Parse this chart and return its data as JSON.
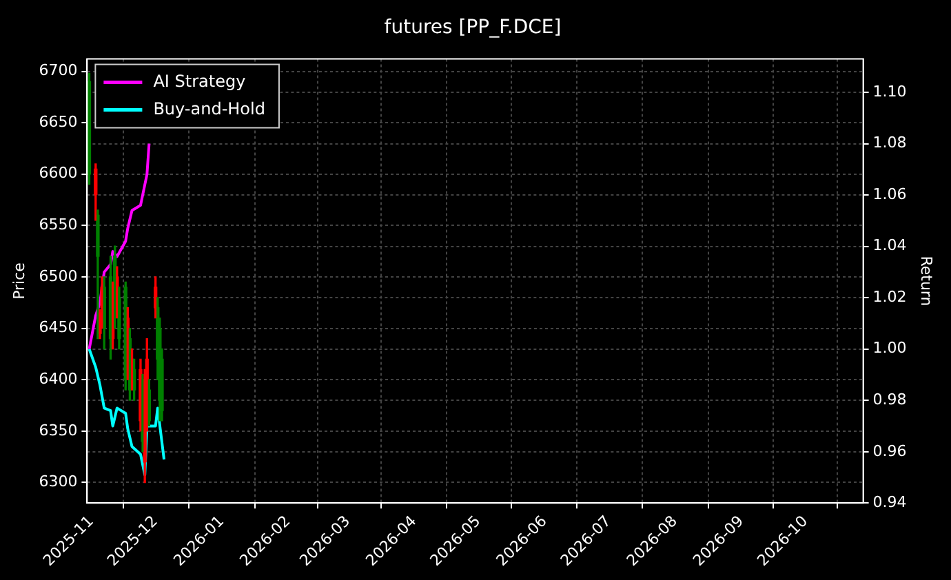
{
  "chart_data": {
    "type": "candlestick",
    "title": "futures [PP_F.DCE]",
    "ylabel": "Price",
    "y2label": "Return",
    "x": [
      "2025-10-31",
      "2025-11-03",
      "2025-11-04",
      "2025-11-05",
      "2025-11-06",
      "2025-11-07",
      "2025-11-10",
      "2025-11-11",
      "2025-11-12",
      "2025-11-13",
      "2025-11-14",
      "2025-11-17",
      "2025-11-18",
      "2025-11-19",
      "2025-11-20",
      "2025-11-21",
      "2025-11-24",
      "2025-11-25",
      "2025-11-26",
      "2025-11-27",
      "2025-11-28",
      "2025-12-01",
      "2025-12-02",
      "2025-12-03",
      "2025-12-04"
    ],
    "ohlc": [
      [
        6600,
        6698,
        6590,
        6690
      ],
      [
        6605,
        6610,
        6555,
        6580
      ],
      [
        6520,
        6565,
        6440,
        6560
      ],
      [
        6465,
        6468,
        6440,
        6445
      ],
      [
        6490,
        6500,
        6450,
        6470
      ],
      [
        6450,
        6500,
        6430,
        6490
      ],
      [
        6440,
        6520,
        6420,
        6500
      ],
      [
        6490,
        6495,
        6430,
        6440
      ],
      [
        6460,
        6530,
        6450,
        6520
      ],
      [
        6500,
        6510,
        6460,
        6470
      ],
      [
        6440,
        6490,
        6430,
        6480
      ],
      [
        6400,
        6495,
        6390,
        6490
      ],
      [
        6460,
        6470,
        6400,
        6410
      ],
      [
        6390,
        6450,
        6380,
        6440
      ],
      [
        6420,
        6430,
        6390,
        6400
      ],
      [
        6390,
        6420,
        6380,
        6410
      ],
      [
        6410,
        6420,
        6350,
        6360
      ],
      [
        6340,
        6405,
        6330,
        6400
      ],
      [
        6400,
        6410,
        6300,
        6320
      ],
      [
        6420,
        6440,
        6350,
        6360
      ],
      [
        6360,
        6400,
        6355,
        6390
      ],
      [
        6490,
        6500,
        6460,
        6470
      ],
      [
        6420,
        6480,
        6400,
        6470
      ],
      [
        6380,
        6460,
        6360,
        6450
      ],
      [
        6370,
        6430,
        6360,
        6420
      ]
    ],
    "colors": [
      "#008000",
      "#ff0000",
      "#008000",
      "#ff0000",
      "#ff0000",
      "#008000",
      "#008000",
      "#ff0000",
      "#008000",
      "#ff0000",
      "#008000",
      "#008000",
      "#ff0000",
      "#008000",
      "#ff0000",
      "#008000",
      "#ff0000",
      "#008000",
      "#ff0000",
      "#ff0000",
      "#008000",
      "#ff0000",
      "#008000",
      "#008000",
      "#008000"
    ],
    "series": [
      {
        "name": "AI Strategy",
        "type": "line",
        "axis": "y2",
        "color": "#ff00ff",
        "x": [
          "2025-10-31",
          "2025-11-03",
          "2025-11-05",
          "2025-11-07",
          "2025-11-10",
          "2025-11-11",
          "2025-11-13",
          "2025-11-17",
          "2025-11-18",
          "2025-11-20",
          "2025-11-24",
          "2025-11-26",
          "2025-11-27",
          "2025-11-28"
        ],
        "values": [
          1.0,
          1.013,
          1.018,
          1.03,
          1.033,
          1.038,
          1.036,
          1.042,
          1.047,
          1.054,
          1.056,
          1.064,
          1.068,
          1.08
        ]
      },
      {
        "name": "Buy-and-Hold",
        "type": "line",
        "axis": "y2",
        "color": "#00ffff",
        "x": [
          "2025-10-31",
          "2025-11-03",
          "2025-11-05",
          "2025-11-07",
          "2025-11-10",
          "2025-11-11",
          "2025-11-13",
          "2025-11-17",
          "2025-11-18",
          "2025-11-20",
          "2025-11-24",
          "2025-11-26",
          "2025-11-27",
          "2025-12-01",
          "2025-12-02",
          "2025-12-05"
        ],
        "values": [
          1.0,
          0.993,
          0.986,
          0.977,
          0.976,
          0.97,
          0.977,
          0.975,
          0.969,
          0.962,
          0.959,
          0.951,
          0.97,
          0.97,
          0.977,
          0.957
        ]
      }
    ],
    "xlim": [
      "2025-10-30",
      "2026-10-28"
    ],
    "xticks": [
      "2025-11",
      "2025-12",
      "2026-01",
      "2026-02",
      "2026-03",
      "2026-04",
      "2026-05",
      "2026-06",
      "2026-07",
      "2026-08",
      "2026-09",
      "2026-10"
    ],
    "ylim": [
      6280,
      6712
    ],
    "yticks": [
      6300,
      6350,
      6400,
      6450,
      6500,
      6550,
      6600,
      6650,
      6700
    ],
    "y2lim": [
      0.94,
      1.113
    ],
    "y2ticks": [
      0.94,
      0.96,
      0.98,
      {
        "value": 1.0,
        "label": "1.00"
      },
      1.02,
      1.04,
      1.06,
      1.08,
      {
        "value": 1.1,
        "label": "1.10"
      }
    ],
    "grid": true,
    "legend": "top left"
  }
}
